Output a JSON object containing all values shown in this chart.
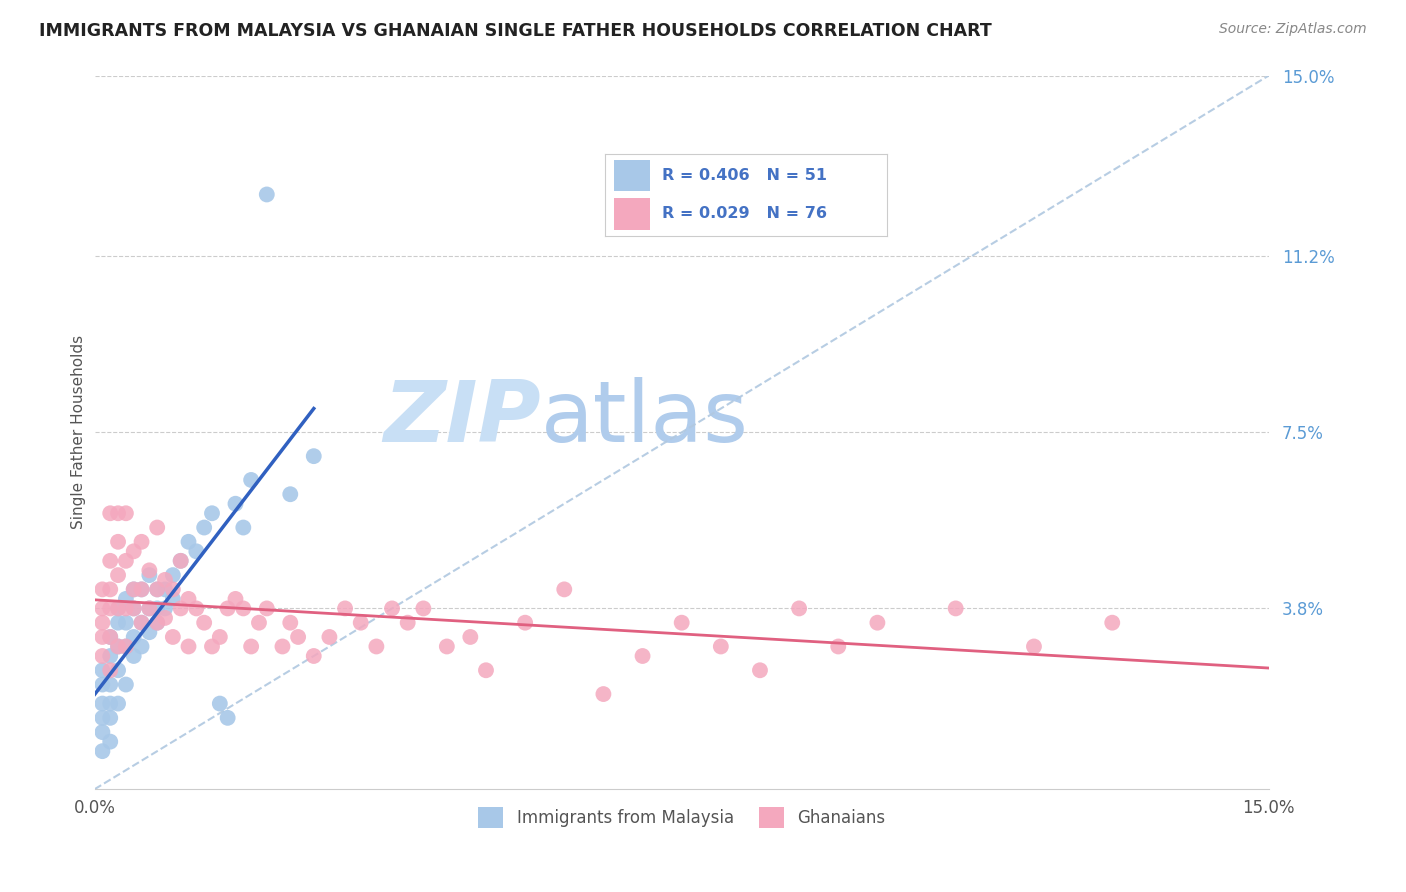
{
  "title": "IMMIGRANTS FROM MALAYSIA VS GHANAIAN SINGLE FATHER HOUSEHOLDS CORRELATION CHART",
  "source": "Source: ZipAtlas.com",
  "ylabel": "Single Father Households",
  "xlim": [
    0.0,
    0.15
  ],
  "ylim": [
    0.0,
    0.15
  ],
  "ytick_labels_right": [
    "15.0%",
    "11.2%",
    "7.5%",
    "3.8%"
  ],
  "ytick_positions_right": [
    0.15,
    0.112,
    0.075,
    0.038
  ],
  "color_blue": "#a8c8e8",
  "color_pink": "#f4a8be",
  "line_blue": "#3060c0",
  "line_pink": "#e06080",
  "diag_line_color": "#b0c8e0",
  "watermark_zip": "ZIP",
  "watermark_atlas": "atlas",
  "watermark_color_zip": "#c8dff0",
  "watermark_color_atlas": "#b8d4ec",
  "malaysia_x": [
    0.001,
    0.001,
    0.001,
    0.001,
    0.001,
    0.001,
    0.002,
    0.002,
    0.002,
    0.002,
    0.002,
    0.002,
    0.003,
    0.003,
    0.003,
    0.003,
    0.003,
    0.004,
    0.004,
    0.004,
    0.004,
    0.005,
    0.005,
    0.005,
    0.005,
    0.006,
    0.006,
    0.006,
    0.007,
    0.007,
    0.007,
    0.008,
    0.008,
    0.008,
    0.009,
    0.009,
    0.01,
    0.01,
    0.011,
    0.012,
    0.013,
    0.014,
    0.015,
    0.016,
    0.017,
    0.018,
    0.019,
    0.02,
    0.022,
    0.025,
    0.028
  ],
  "malaysia_y": [
    0.008,
    0.012,
    0.015,
    0.018,
    0.022,
    0.025,
    0.01,
    0.015,
    0.018,
    0.022,
    0.028,
    0.032,
    0.018,
    0.025,
    0.03,
    0.035,
    0.038,
    0.022,
    0.03,
    0.035,
    0.04,
    0.028,
    0.032,
    0.038,
    0.042,
    0.03,
    0.035,
    0.042,
    0.033,
    0.038,
    0.045,
    0.035,
    0.038,
    0.042,
    0.038,
    0.042,
    0.04,
    0.045,
    0.048,
    0.052,
    0.05,
    0.055,
    0.058,
    0.018,
    0.015,
    0.06,
    0.055,
    0.065,
    0.125,
    0.062,
    0.07
  ],
  "ghana_x": [
    0.001,
    0.001,
    0.001,
    0.001,
    0.001,
    0.002,
    0.002,
    0.002,
    0.002,
    0.002,
    0.002,
    0.003,
    0.003,
    0.003,
    0.003,
    0.003,
    0.004,
    0.004,
    0.004,
    0.004,
    0.005,
    0.005,
    0.005,
    0.006,
    0.006,
    0.006,
    0.007,
    0.007,
    0.008,
    0.008,
    0.008,
    0.009,
    0.009,
    0.01,
    0.01,
    0.011,
    0.011,
    0.012,
    0.012,
    0.013,
    0.014,
    0.015,
    0.016,
    0.017,
    0.018,
    0.019,
    0.02,
    0.021,
    0.022,
    0.024,
    0.025,
    0.026,
    0.028,
    0.03,
    0.032,
    0.034,
    0.036,
    0.038,
    0.04,
    0.042,
    0.045,
    0.048,
    0.05,
    0.055,
    0.06,
    0.065,
    0.07,
    0.075,
    0.08,
    0.085,
    0.09,
    0.095,
    0.1,
    0.11,
    0.12,
    0.13
  ],
  "ghana_y": [
    0.028,
    0.032,
    0.035,
    0.038,
    0.042,
    0.025,
    0.032,
    0.038,
    0.042,
    0.048,
    0.058,
    0.03,
    0.038,
    0.045,
    0.052,
    0.058,
    0.03,
    0.038,
    0.048,
    0.058,
    0.038,
    0.042,
    0.05,
    0.035,
    0.042,
    0.052,
    0.038,
    0.046,
    0.035,
    0.042,
    0.055,
    0.036,
    0.044,
    0.032,
    0.042,
    0.038,
    0.048,
    0.03,
    0.04,
    0.038,
    0.035,
    0.03,
    0.032,
    0.038,
    0.04,
    0.038,
    0.03,
    0.035,
    0.038,
    0.03,
    0.035,
    0.032,
    0.028,
    0.032,
    0.038,
    0.035,
    0.03,
    0.038,
    0.035,
    0.038,
    0.03,
    0.032,
    0.025,
    0.035,
    0.042,
    0.02,
    0.028,
    0.035,
    0.03,
    0.025,
    0.038,
    0.03,
    0.035,
    0.038,
    0.03,
    0.035
  ],
  "mal_line_x0": 0.0,
  "mal_line_y0": 0.01,
  "mal_line_x1": 0.028,
  "mal_line_y1": 0.068,
  "gha_line_x0": 0.0,
  "gha_line_y0": 0.033,
  "gha_line_x1": 0.15,
  "gha_line_y1": 0.038
}
